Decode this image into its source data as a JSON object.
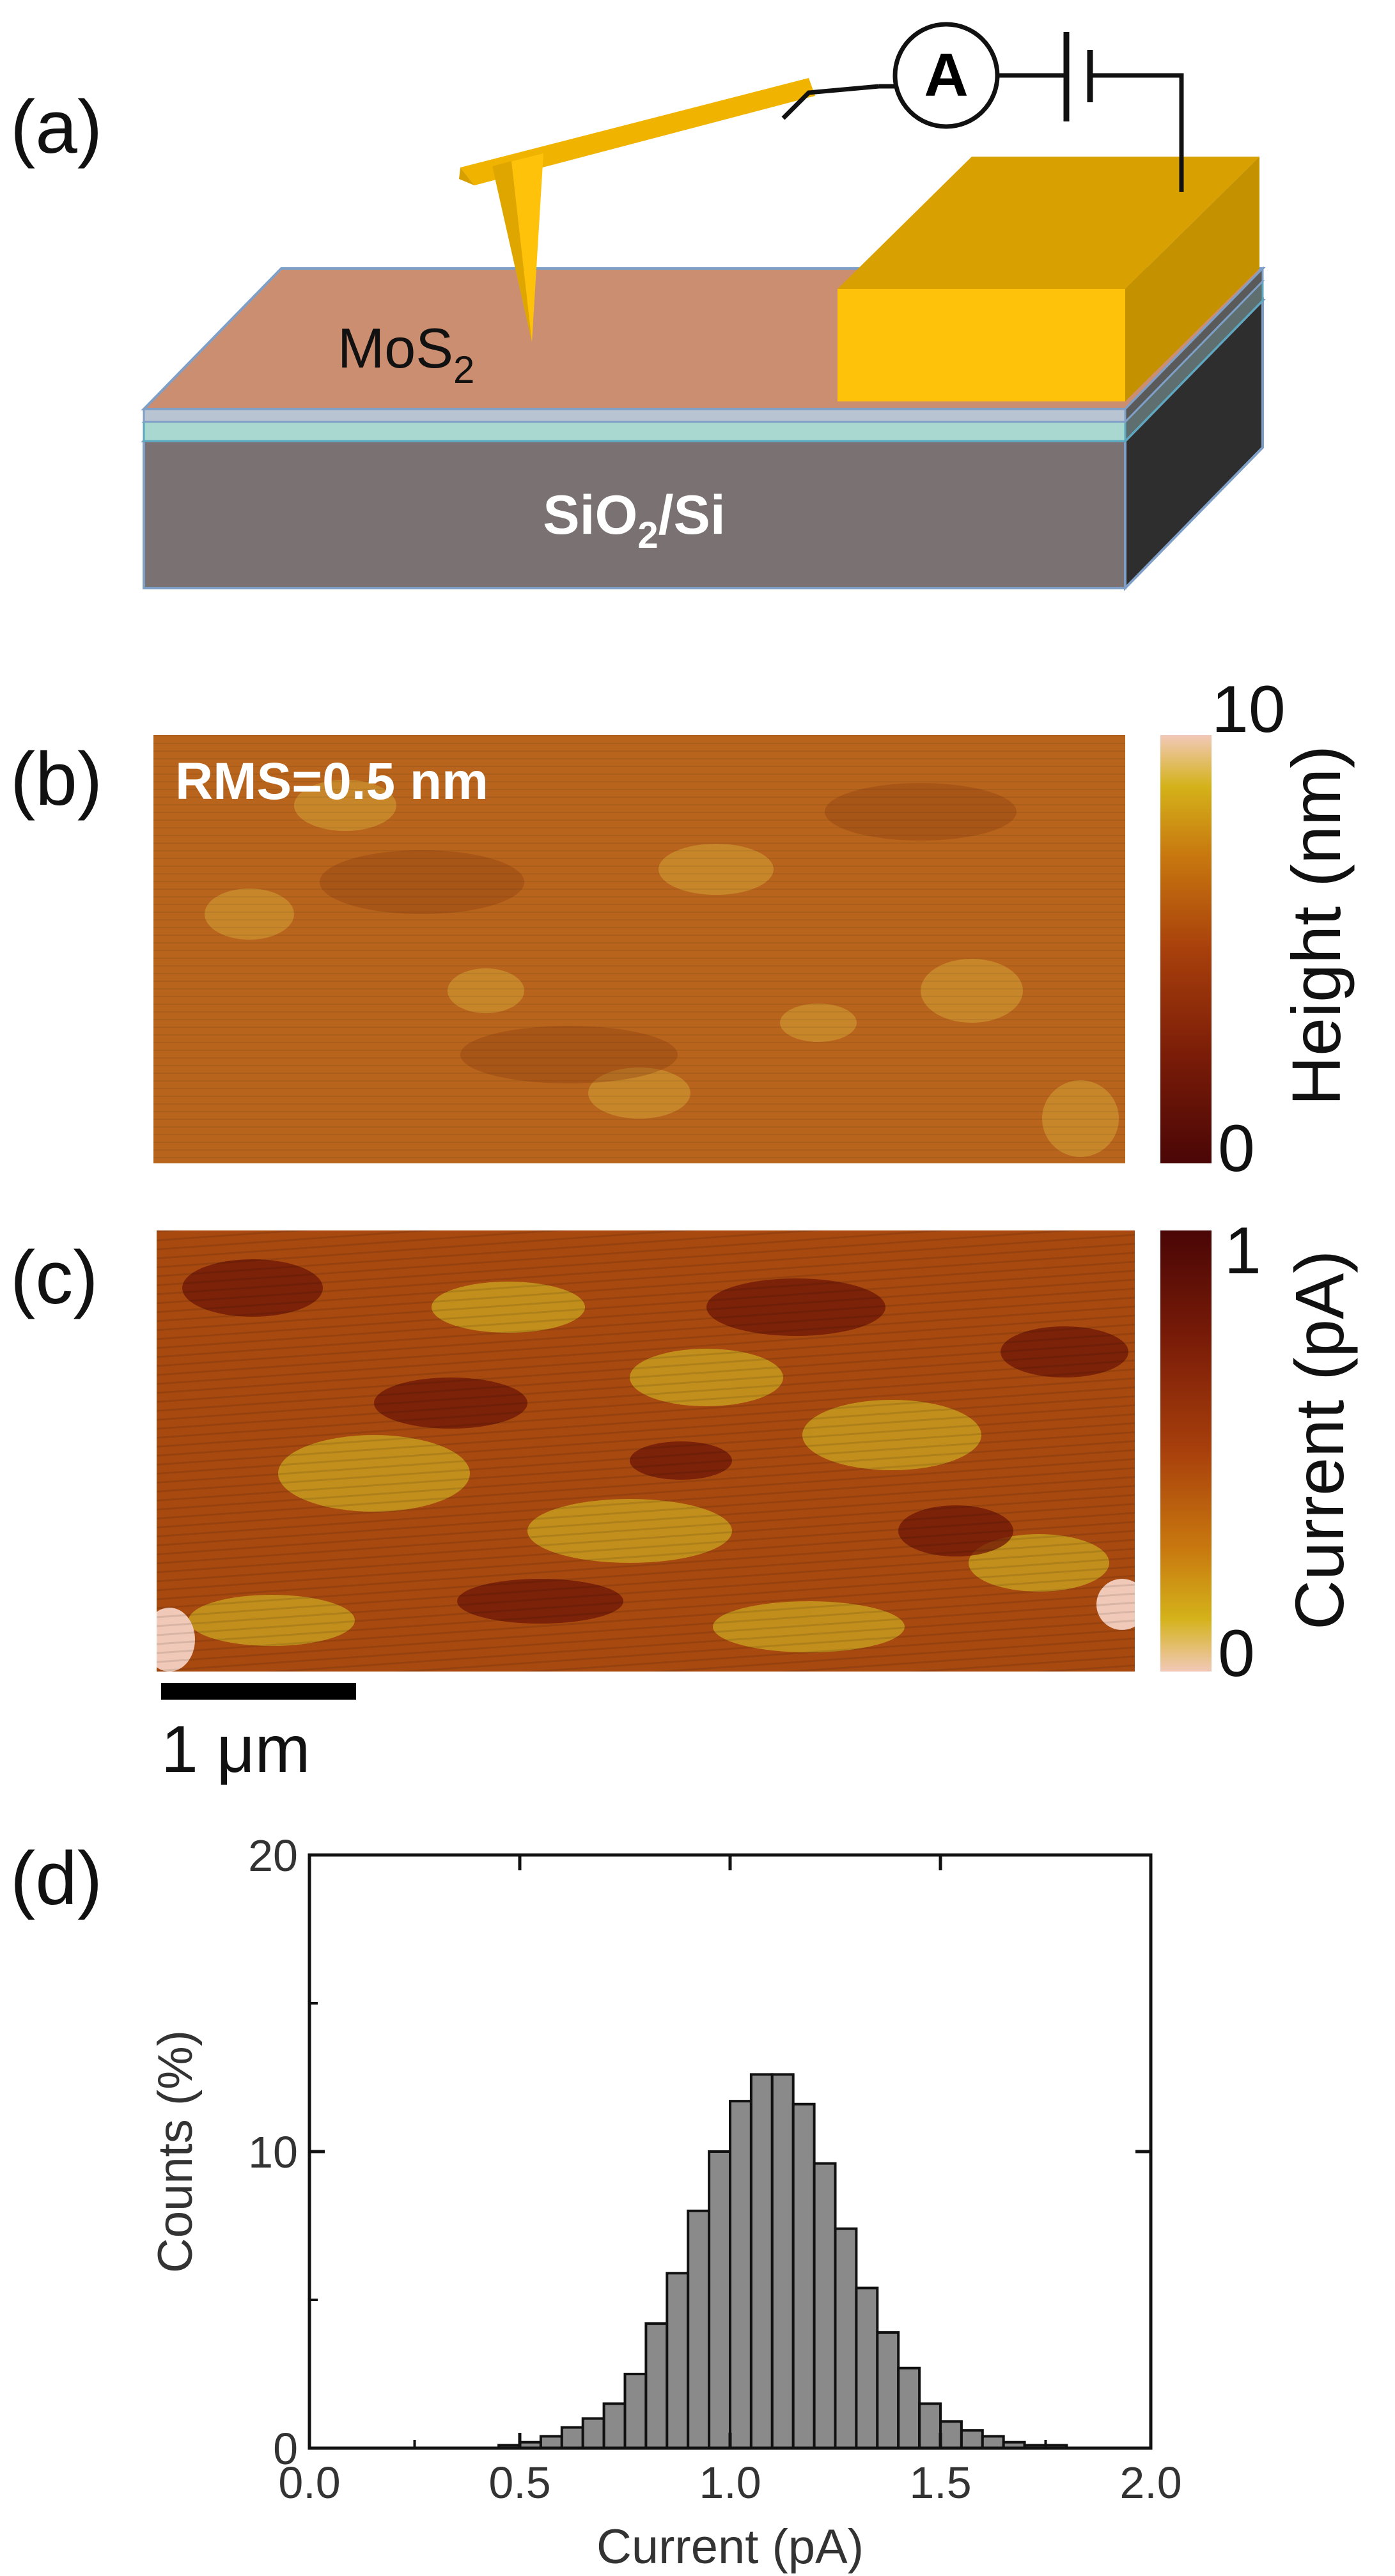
{
  "panels": {
    "a": {
      "label": "(a)",
      "material_label": "MoS",
      "material_subscript": "2",
      "substrate_pre": "SiO",
      "substrate_subscript": "2",
      "substrate_post": "/Si",
      "ammeter_symbol": "A"
    },
    "b": {
      "label": "(b)",
      "annotation": "RMS=0.5 nm",
      "colorbar": {
        "max": "10",
        "min": "0",
        "title": "Height (nm)",
        "colors": [
          "#4a0606",
          "#7a1c08",
          "#a8400c",
          "#c8780f",
          "#d4b21a",
          "#f1c9b8"
        ]
      }
    },
    "c": {
      "label": "(c)",
      "colorbar": {
        "max": "1",
        "min": "0",
        "title": "Current (pA)",
        "colors": [
          "#4a0606",
          "#7a1c08",
          "#a8400c",
          "#c8780f",
          "#d4b21a",
          "#f1c9b8"
        ]
      },
      "scalebar_label": "1 μm"
    },
    "d": {
      "label": "(d)"
    }
  },
  "chart_data": {
    "type": "bar",
    "title": "",
    "xlabel": "Current (pA)",
    "ylabel": "Counts (%)",
    "xlim": [
      0.0,
      2.0
    ],
    "ylim": [
      0,
      20
    ],
    "xticks": [
      "0.0",
      "0.5",
      "1.0",
      "1.5",
      "2.0"
    ],
    "yticks": [
      "0",
      "10",
      "20"
    ],
    "bin_width": 0.05,
    "bar_color": "#8a8a8a",
    "x": [
      0.45,
      0.5,
      0.55,
      0.6,
      0.65,
      0.7,
      0.75,
      0.8,
      0.85,
      0.9,
      0.95,
      1.0,
      1.05,
      1.1,
      1.15,
      1.2,
      1.25,
      1.3,
      1.35,
      1.4,
      1.45,
      1.5,
      1.55,
      1.6,
      1.65,
      1.7,
      1.75
    ],
    "values": [
      0.1,
      0.2,
      0.4,
      0.7,
      1.0,
      1.5,
      2.5,
      4.2,
      5.9,
      8.0,
      10.0,
      11.7,
      12.6,
      12.6,
      11.6,
      9.6,
      7.4,
      5.4,
      3.9,
      2.7,
      1.5,
      0.9,
      0.6,
      0.4,
      0.2,
      0.1,
      0.1
    ]
  }
}
